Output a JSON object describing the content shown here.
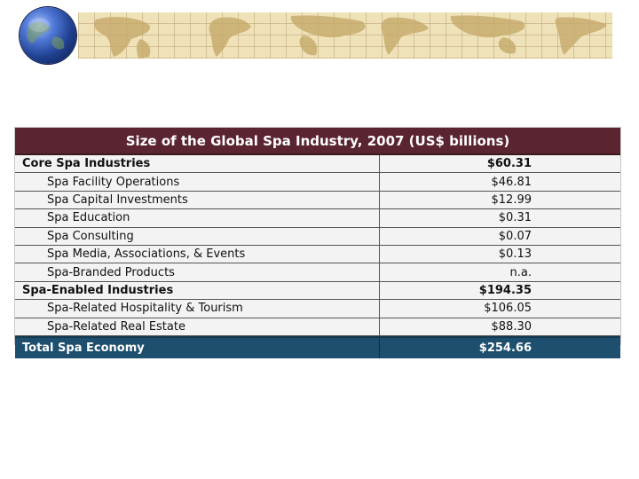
{
  "banner": {
    "icon": "world-map-icon",
    "colors": {
      "map_bg": "#efe2b8",
      "land": "#c8ac6e"
    }
  },
  "globe": {
    "icon": "globe-icon"
  },
  "table": {
    "title": "Size of the Global Spa Industry, 2007 (US$ billions)",
    "rows": [
      {
        "label": "Core Spa Industries",
        "value": "$60.31"
      },
      {
        "label": "Spa Facility Operations",
        "value": "$46.81"
      },
      {
        "label": "Spa Capital Investments",
        "value": "$12.99"
      },
      {
        "label": "Spa Education",
        "value": "$0.31"
      },
      {
        "label": "Spa Consulting",
        "value": "$0.07"
      },
      {
        "label": "Spa Media, Associations, & Events",
        "value": "$0.13"
      },
      {
        "label": "Spa-Branded Products",
        "value": "n.a."
      },
      {
        "label": "Spa-Enabled Industries",
        "value": "$194.35"
      },
      {
        "label": "Spa-Related Hospitality & Tourism",
        "value": "$106.05"
      },
      {
        "label": "Spa-Related Real Estate",
        "value": "$88.30"
      }
    ],
    "total": {
      "label": "Total Spa Economy",
      "value": "$254.66"
    },
    "colors": {
      "title_bg": "#5a2430",
      "total_bg": "#1e4f6e"
    }
  }
}
